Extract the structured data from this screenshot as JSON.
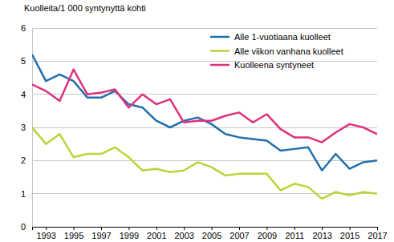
{
  "chart_data": {
    "type": "line",
    "y_label": "Kuolleita/1 000 syntynyttä kohti",
    "x": [
      1992,
      1993,
      1994,
      1995,
      1996,
      1997,
      1998,
      1999,
      2000,
      2001,
      2002,
      2003,
      2004,
      2005,
      2006,
      2007,
      2008,
      2009,
      2010,
      2011,
      2012,
      2013,
      2014,
      2015,
      2016,
      2017
    ],
    "series": [
      {
        "name": "Alle 1-vuotiaana kuolleet",
        "color": "#2170ad",
        "values": [
          5.2,
          4.4,
          4.6,
          4.4,
          3.9,
          3.9,
          4.1,
          3.7,
          3.6,
          3.2,
          3.0,
          3.2,
          3.3,
          3.1,
          2.8,
          2.7,
          2.65,
          2.6,
          2.3,
          2.35,
          2.4,
          1.7,
          2.2,
          1.75,
          1.95,
          2.0
        ]
      },
      {
        "name": "Alle viikon vanhana kuolleet",
        "color": "#bcd437",
        "values": [
          3.0,
          2.5,
          2.8,
          2.1,
          2.2,
          2.2,
          2.4,
          2.1,
          1.7,
          1.75,
          1.65,
          1.7,
          1.95,
          1.8,
          1.55,
          1.6,
          1.6,
          1.6,
          1.1,
          1.3,
          1.2,
          0.85,
          1.05,
          0.95,
          1.05,
          1.0
        ]
      },
      {
        "name": "Kuolleena syntyneet",
        "color": "#e0307d",
        "values": [
          4.3,
          4.1,
          3.8,
          4.75,
          4.0,
          4.05,
          4.15,
          3.6,
          4.0,
          3.7,
          3.85,
          3.15,
          3.2,
          3.2,
          3.35,
          3.45,
          3.15,
          3.4,
          2.95,
          2.7,
          2.7,
          2.55,
          2.85,
          3.1,
          3.0,
          2.8
        ]
      }
    ],
    "xlim": [
      1992,
      2017
    ],
    "xticks": [
      1993,
      1995,
      1997,
      1999,
      2001,
      2003,
      2005,
      2007,
      2009,
      2011,
      2013,
      2015,
      2017
    ],
    "ylim": [
      0,
      6
    ],
    "yticks": [
      0,
      1,
      2,
      3,
      4,
      5,
      6
    ],
    "grid": true,
    "legend": "top-right"
  }
}
